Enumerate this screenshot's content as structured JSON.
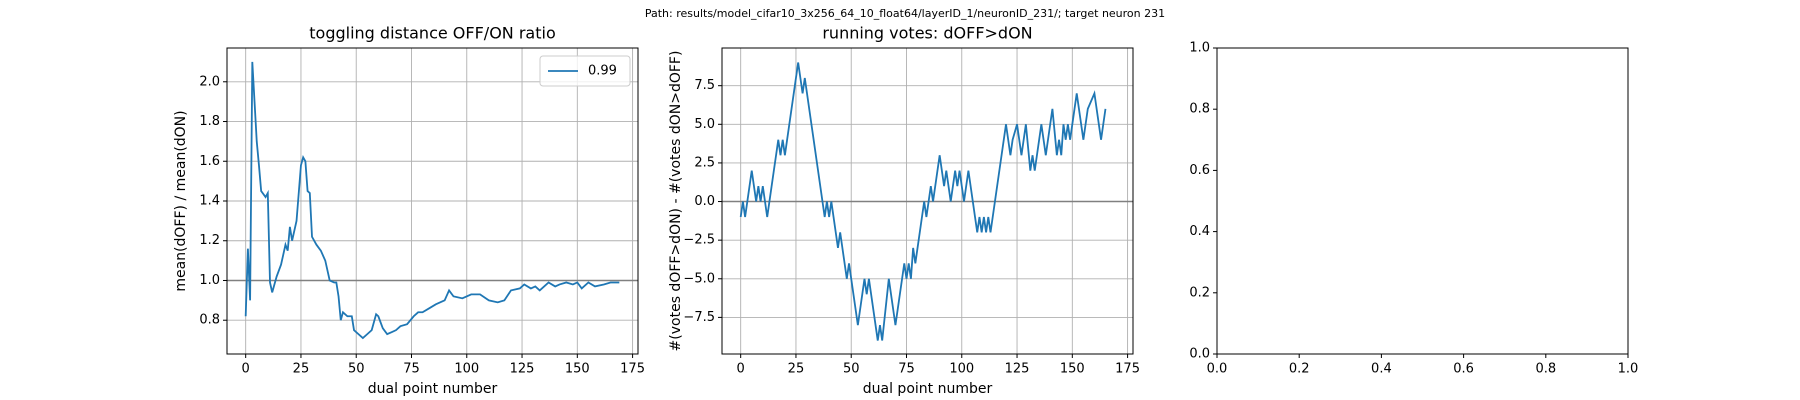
{
  "suptitle": "Path: results/model_cifar10_3x256_64_10_float64/layerID_1/neuronID_231/; target neuron 231",
  "chart_data": [
    {
      "type": "line",
      "title": "toggling distance OFF/ON ratio",
      "xlabel": "dual point number",
      "ylabel": "mean(dOFF) / mean(dON)",
      "x": [
        0,
        1,
        2,
        3,
        4,
        5,
        6,
        7,
        9,
        10,
        11,
        12,
        14,
        16,
        18,
        19,
        20,
        21,
        23,
        25,
        26,
        27,
        28,
        29,
        30,
        32,
        34,
        36,
        38,
        40,
        41,
        42,
        43,
        44,
        46,
        48,
        49,
        51,
        53,
        55,
        57,
        59,
        60,
        62,
        64,
        66,
        68,
        70,
        73,
        76,
        78,
        80,
        83,
        86,
        90,
        92,
        94,
        98,
        102,
        106,
        110,
        114,
        117,
        120,
        124,
        126,
        129,
        131,
        133,
        135,
        137,
        140,
        142,
        145,
        148,
        150,
        152,
        155,
        158,
        162,
        165,
        169
      ],
      "series": [
        {
          "name": "0.99",
          "color": "#1f77b4",
          "values": [
            0.82,
            1.16,
            0.9,
            2.1,
            1.9,
            1.7,
            1.58,
            1.45,
            1.42,
            1.44,
            0.99,
            0.94,
            1.02,
            1.08,
            1.18,
            1.15,
            1.27,
            1.2,
            1.3,
            1.58,
            1.62,
            1.6,
            1.45,
            1.44,
            1.22,
            1.18,
            1.15,
            1.1,
            1.0,
            0.99,
            0.99,
            0.92,
            0.8,
            0.84,
            0.82,
            0.82,
            0.75,
            0.73,
            0.71,
            0.73,
            0.75,
            0.83,
            0.82,
            0.76,
            0.73,
            0.74,
            0.75,
            0.77,
            0.78,
            0.82,
            0.84,
            0.84,
            0.86,
            0.88,
            0.9,
            0.95,
            0.92,
            0.91,
            0.93,
            0.93,
            0.9,
            0.89,
            0.9,
            0.95,
            0.96,
            0.98,
            0.96,
            0.97,
            0.95,
            0.97,
            0.99,
            0.97,
            0.98,
            0.99,
            0.98,
            0.99,
            0.96,
            0.99,
            0.97,
            0.98,
            0.99,
            0.99
          ]
        }
      ],
      "hline": 1,
      "hline_color": "#808080",
      "xlim": [
        -8.45,
        177.45
      ],
      "xticks": [
        0,
        25,
        50,
        75,
        100,
        125,
        150,
        175
      ],
      "ylim": [
        0.63,
        2.17
      ],
      "yticks": [
        0.8,
        {
          "value": 1.0,
          "label": "1.0"
        },
        1.2,
        1.4,
        1.6,
        1.8,
        {
          "value": 2.0,
          "label": "2.0"
        }
      ],
      "grid": true,
      "legend": "upper right"
    },
    {
      "type": "line",
      "title": "running votes: dOFF>dON",
      "xlabel": "dual point number",
      "ylabel": "#(votes dOFF>dON) - #(votes dON>dOFF)",
      "x": [
        0,
        1,
        2,
        5,
        7,
        8,
        9,
        10,
        12,
        15,
        16,
        17,
        18,
        19,
        20,
        26,
        27,
        28,
        29,
        38,
        39,
        40,
        41,
        44,
        45,
        48,
        49,
        53,
        55,
        56,
        57,
        58,
        59,
        62,
        63,
        64,
        67,
        70,
        74,
        75,
        76,
        77,
        78,
        79,
        83,
        84,
        86,
        87,
        90,
        92,
        93,
        95,
        97,
        98,
        99,
        101,
        103,
        106,
        107,
        108,
        109,
        110,
        111,
        112,
        113,
        120,
        121,
        122,
        123,
        125,
        127,
        129,
        131,
        132,
        133,
        136,
        138,
        141,
        143,
        144,
        145,
        146,
        147,
        148,
        149,
        150,
        152,
        155,
        157,
        160,
        163,
        165
      ],
      "series": [
        {
          "color": "#1f77b4",
          "values": [
            -1,
            0,
            -1,
            2,
            0,
            1,
            0,
            1,
            -1,
            2,
            3,
            4,
            3,
            4,
            3,
            9,
            8,
            7,
            8,
            -1,
            0,
            -1,
            0,
            -3,
            -2,
            -5,
            -4,
            -8,
            -6,
            -5,
            -6,
            -5,
            -6,
            -9,
            -8,
            -9,
            -5,
            -8,
            -4,
            -5,
            -4,
            -5,
            -3,
            -4,
            0,
            -1,
            1,
            0,
            3,
            1,
            2,
            0,
            2,
            1,
            2,
            0,
            2,
            -1,
            -2,
            -1,
            -2,
            -1,
            -2,
            -1,
            -2,
            5,
            4,
            3,
            4,
            5,
            3,
            5,
            2,
            3,
            2,
            5,
            3,
            6,
            3,
            4,
            3,
            5,
            4,
            5,
            4,
            5,
            7,
            4,
            6,
            7,
            4,
            6
          ]
        }
      ],
      "hline": 0,
      "hline_color": "#808080",
      "xlim": [
        -8.45,
        177.45
      ],
      "xticks": [
        0,
        25,
        50,
        75,
        100,
        125,
        150,
        175
      ],
      "ylim": [
        -9.87,
        9.94
      ],
      "yticks": [
        {
          "value": -7.5,
          "label": "−7.5"
        },
        {
          "value": -5,
          "label": "−5.0"
        },
        {
          "value": -2.5,
          "label": "−2.5"
        },
        {
          "value": 0,
          "label": "0.0"
        },
        2.5,
        {
          "value": 5,
          "label": "5.0"
        },
        7.5
      ],
      "grid": true
    },
    {
      "type": "empty",
      "xlim": [
        0,
        1
      ],
      "xticks": [
        {
          "value": 0,
          "label": "0.0"
        },
        0.2,
        0.4,
        0.6,
        0.8,
        {
          "value": 1,
          "label": "1.0"
        }
      ],
      "ylim": [
        0,
        1
      ],
      "yticks": [
        {
          "value": 0,
          "label": "0.0"
        },
        0.2,
        0.4,
        0.6,
        0.8,
        {
          "value": 1,
          "label": "1.0"
        }
      ],
      "grid": false
    }
  ]
}
